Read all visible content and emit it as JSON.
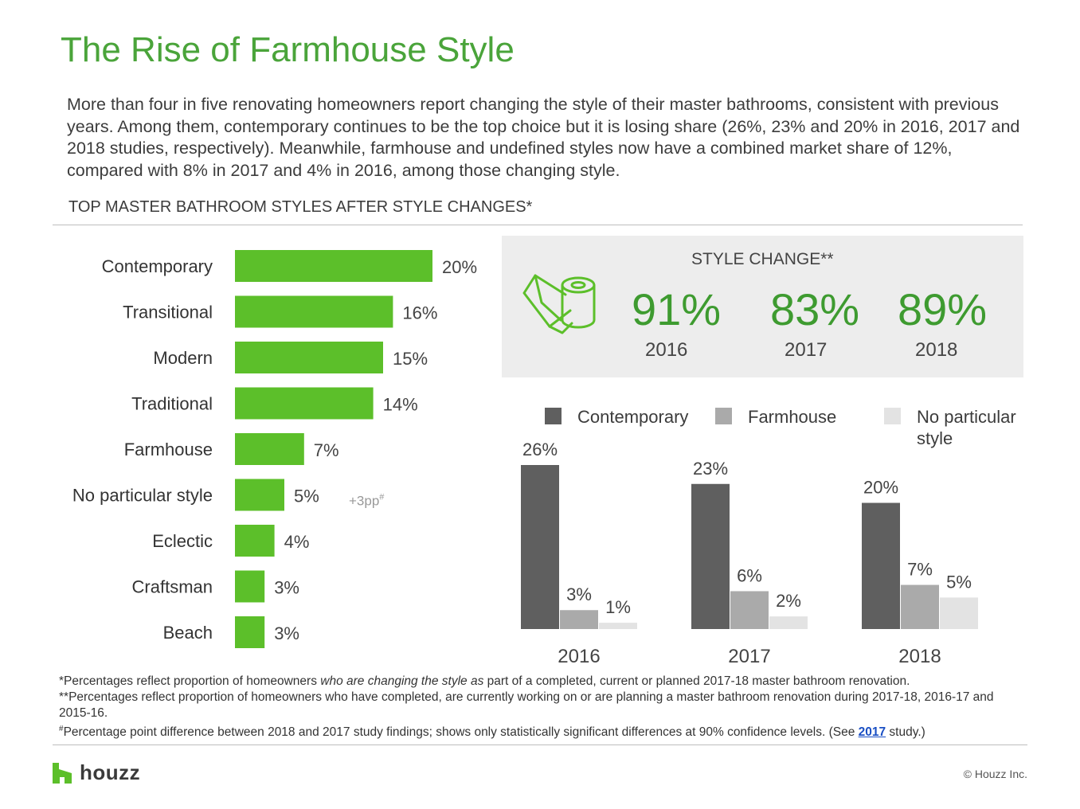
{
  "title": "The Rise of Farmhouse Style",
  "intro": "More than four in five renovating homeowners report changing the style of their master bathrooms, consistent with previous years. Among them, contemporary continues to be the top choice but it is losing share (26%, 23% and 20% in 2016, 2017 and 2018 studies, respectively). Meanwhile, farmhouse and undefined styles now have a combined market share of 12%, compared with 8% in 2017 and 4% in 2016, among those changing style.",
  "subhead": "TOP MASTER BATHROOM STYLES AFTER STYLE CHANGES*",
  "style_change": {
    "label": "STYLE CHANGE**",
    "values": [
      {
        "value": "91%",
        "year": "2016"
      },
      {
        "value": "83%",
        "year": "2017"
      },
      {
        "value": "89%",
        "year": "2018"
      }
    ],
    "icon": "toilet-paper-icon"
  },
  "legend": [
    {
      "label": "Contemporary",
      "color": "#5f5f5f"
    },
    {
      "label": "Farmhouse",
      "color": "#aaaaaa"
    },
    {
      "label": "No particular style",
      "color": "#e3e3e3"
    }
  ],
  "footnotes": {
    "f1_a": "*Percentages reflect proportion of homeowners ",
    "f1_em": "who are changing the style as",
    "f1_b": " part of a completed, current or planned 2017-18 master bathroom renovation.",
    "f2": "**Percentages reflect proportion of homeowners who have completed, are currently working on or are planning a master bathroom renovation during 2017-18, 2016-17 and 2015-16.",
    "f3_mark": "#",
    "f3_a": "Percentage point difference between 2018 and 2017 study findings; shows only statistically significant differences at 90% confidence levels. (See ",
    "f3_link": "2017",
    "f3_b": " study.)"
  },
  "brand": "houzz",
  "copyright": "© Houzz Inc.",
  "chart_data": [
    {
      "type": "bar",
      "orientation": "horizontal",
      "categories": [
        "Contemporary",
        "Transitional",
        "Modern",
        "Traditional",
        "Farmhouse",
        "No particular style",
        "Eclectic",
        "Craftsman",
        "Beach"
      ],
      "values": [
        20,
        16,
        15,
        14,
        7,
        5,
        4,
        3,
        3
      ],
      "value_labels": [
        "20%",
        "16%",
        "15%",
        "14%",
        "7%",
        "5%",
        "4%",
        "3%",
        "3%"
      ],
      "annotation": {
        "category": "No particular style",
        "text": "+3pp",
        "mark": "#"
      },
      "color": "#5cbf2a"
    },
    {
      "type": "bar",
      "orientation": "vertical",
      "categories": [
        "2016",
        "2017",
        "2018"
      ],
      "series": [
        {
          "name": "Contemporary",
          "values": [
            26,
            23,
            20
          ],
          "labels": [
            "26%",
            "23%",
            "20%"
          ],
          "color": "#5f5f5f"
        },
        {
          "name": "Farmhouse",
          "values": [
            3,
            6,
            7
          ],
          "labels": [
            "3%",
            "6%",
            "7%"
          ],
          "color": "#aaaaaa"
        },
        {
          "name": "No particular style",
          "values": [
            1,
            2,
            5
          ],
          "labels": [
            "1%",
            "2%",
            "5%"
          ],
          "color": "#e3e3e3"
        }
      ]
    }
  ]
}
